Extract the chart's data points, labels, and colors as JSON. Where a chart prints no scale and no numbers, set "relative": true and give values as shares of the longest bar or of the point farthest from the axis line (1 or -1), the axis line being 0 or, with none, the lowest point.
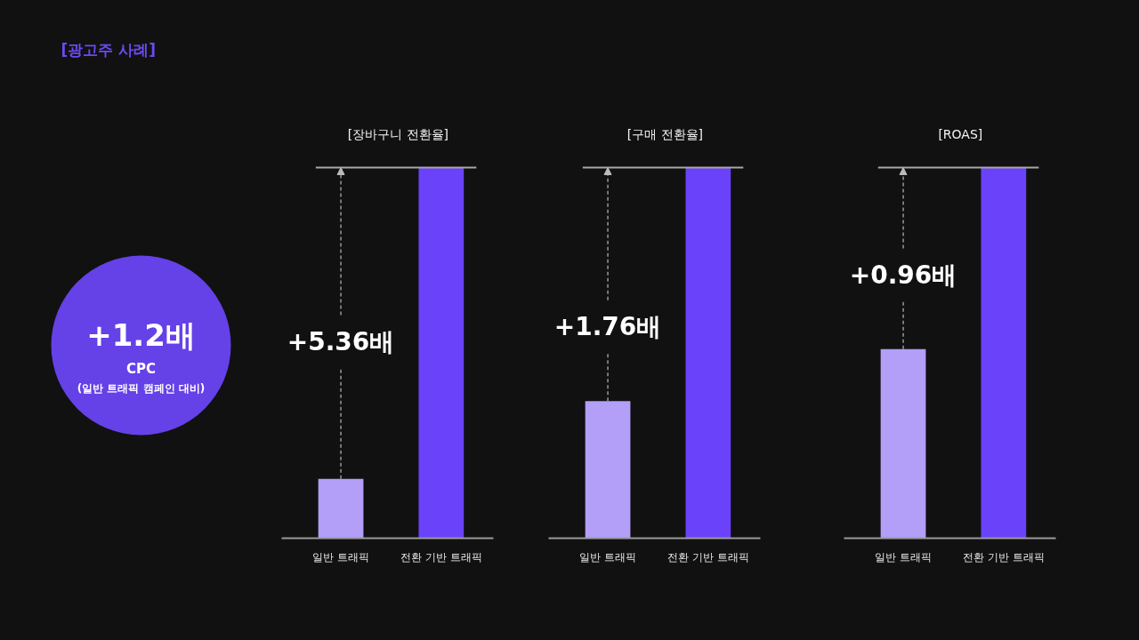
{
  "chart_data": [
    {
      "type": "other",
      "title": "[광고주 사례]",
      "annotations": [
        "+1.2배",
        "CPC",
        "(일반 트래픽 캠페인 대비)"
      ]
    },
    {
      "type": "bar",
      "title": "[장바구니 전환율]",
      "categories": [
        "일반 트래픽",
        "전환 기반 트래픽"
      ],
      "values": [
        0.16,
        1
      ],
      "colors": [
        "#b39ef8",
        "#6a42fa"
      ],
      "relative": true,
      "ref_lines": [
        {
          "axis": "y",
          "value": 1,
          "color": "#a8a8a8"
        }
      ],
      "annotations": [
        "+5.36배"
      ]
    },
    {
      "type": "bar",
      "title": "[구매 전환율]",
      "categories": [
        "일반 트래픽",
        "전환 기반 트래픽"
      ],
      "values": [
        0.37,
        1
      ],
      "colors": [
        "#b39ef8",
        "#6a42fa"
      ],
      "relative": true,
      "ref_lines": [
        {
          "axis": "y",
          "value": 1,
          "color": "#a8a8a8"
        }
      ],
      "annotations": [
        "+1.76배"
      ]
    },
    {
      "type": "bar",
      "title": "[ROAS]",
      "categories": [
        "일반 트래픽",
        "전환 기반 트래픽"
      ],
      "values": [
        0.51,
        1
      ],
      "colors": [
        "#b39ef8",
        "#6a42fa"
      ],
      "relative": true,
      "ref_lines": [
        {
          "axis": "y",
          "value": 1,
          "color": "#a8a8a8"
        }
      ],
      "annotations": [
        "+0.96배"
      ]
    }
  ]
}
